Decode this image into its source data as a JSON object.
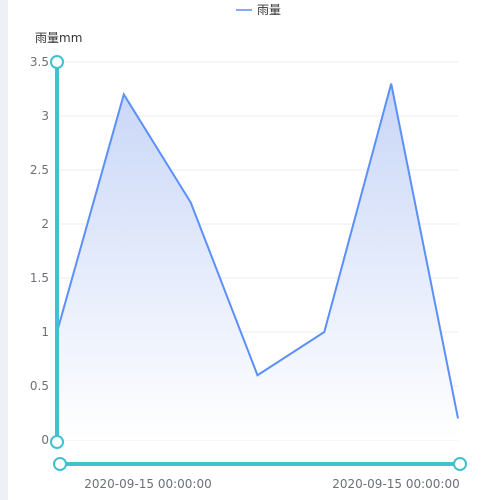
{
  "chart_data": {
    "type": "area",
    "ylabel": "雨量mm",
    "legend": {
      "entries": [
        "雨量"
      ],
      "position": "top-center"
    },
    "ylim": [
      0,
      3.5
    ],
    "yticks": [
      "0",
      "0.5",
      "1",
      "1.5",
      "2",
      "2.5",
      "3",
      "3.5"
    ],
    "xtick_labels": [
      "2020-09-15 00:00:00",
      "2020-09-15 00:00:00"
    ],
    "series": [
      {
        "name": "雨量",
        "values": [
          1.0,
          3.2,
          2.2,
          0.6,
          1.0,
          3.3,
          0.2
        ]
      }
    ],
    "grid": true,
    "colors": {
      "line": "#5b8ff9",
      "area_top": "#c8d6f7",
      "area_bottom": "#ffffff",
      "slider": "#3fc1d0",
      "grid": "#eeeeee"
    },
    "data_zoom": {
      "x_range": [
        0,
        1
      ],
      "y_range": [
        0,
        1
      ]
    }
  }
}
